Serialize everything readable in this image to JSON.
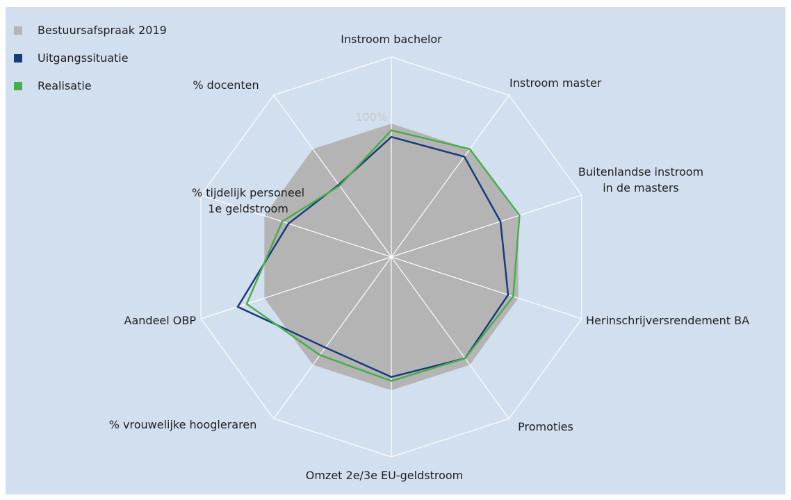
{
  "chart_data": {
    "type": "radar",
    "categories": [
      "Instroom bachelor",
      "Instroom master",
      "Buitenlandse instroom\nin de masters",
      "Herinschrijversrendement BA",
      "Promoties",
      "Omzet 2e/3e EU-geldstroom",
      "% vrouwelijke hoogleraren",
      "Aandeel OBP",
      "% tijdelijk personeel\n1e geldstroom",
      "% docenten"
    ],
    "series": [
      {
        "name": "Bestuursafspraak 2019",
        "color": "#b4b4b4",
        "values": [
          100,
          100,
          100,
          100,
          100,
          100,
          100,
          100,
          100,
          100
        ]
      },
      {
        "name": "Uitgangssituatie",
        "color": "#183b7c",
        "values": [
          90,
          93,
          86,
          92,
          94,
          90,
          84,
          121,
          81,
          67
        ]
      },
      {
        "name": "Realisatie",
        "color": "#49ad4c",
        "values": [
          95,
          100,
          101,
          96,
          94,
          93,
          91,
          114,
          86,
          66
        ]
      }
    ],
    "ylim": [
      0,
      150
    ],
    "yticks": [
      {
        "value": 100,
        "label": "100%"
      }
    ],
    "legend": "top-left"
  }
}
